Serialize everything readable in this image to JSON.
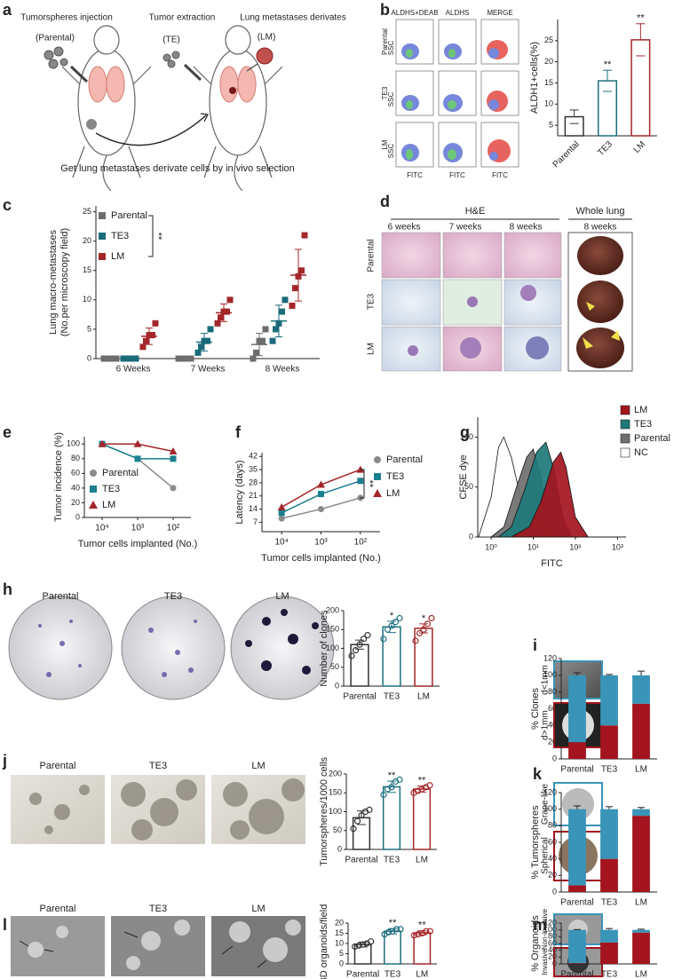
{
  "figure": {
    "panel_labels": [
      "a",
      "b",
      "c",
      "d",
      "e",
      "f",
      "g",
      "h",
      "i",
      "j",
      "k",
      "l",
      "m"
    ],
    "a": {
      "steps": [
        "Tumorspheres injection",
        "Tumor extraction",
        "Lung metastases derivates"
      ],
      "codes": [
        "(Parental)",
        "(TE)",
        "(LM)"
      ],
      "caption": "Get lung metastases derivate cells by in vivo selection"
    },
    "b": {
      "columns": [
        "ALDHS+DEAB",
        "ALDHS",
        "MERGE"
      ],
      "rows": [
        "Parental",
        "TE3",
        "LM"
      ],
      "y_label": "SSC",
      "x_label": "FITC"
    },
    "d": {
      "group_titles": [
        "H&E",
        "Whole lung"
      ],
      "columns": [
        "6 weeks",
        "7 weeks",
        "8 weeks",
        "8 weeks"
      ],
      "rows": [
        "Parental",
        "TE3",
        "LM"
      ]
    },
    "h": {
      "images": [
        "Parental",
        "TE3",
        "LM"
      ]
    },
    "i": {
      "images": [
        "d<1mm",
        "d>1mm"
      ]
    },
    "j": {
      "images": [
        "Parental",
        "TE3",
        "LM"
      ]
    },
    "k": {
      "images": [
        "Grape-like",
        "Spherical"
      ]
    },
    "l": {
      "images": [
        "Parental",
        "TE3",
        "LM"
      ]
    },
    "m": {
      "images": [
        "Non-invasive",
        "Invasive"
      ]
    }
  },
  "chart_data": [
    {
      "type": "bar",
      "y_label": "ALDH1+cells(%)",
      "categories": [
        "Parental",
        "TE3",
        "LM"
      ],
      "values": [
        7,
        15.5,
        25.2
      ],
      "errors": [
        1.6,
        2.5,
        3.8
      ],
      "significance": [
        null,
        "**",
        "**"
      ],
      "colors": [
        "#333333",
        "#1d6f7f",
        "#a3272a"
      ],
      "ylim": [
        2.5,
        30
      ],
      "yticks": [
        5,
        10,
        15,
        20,
        25
      ]
    },
    {
      "type": "dot",
      "y_label": [
        "Lung macro-metastases",
        "(No.per microscopy field)"
      ],
      "categories": [
        "6 Weeks",
        "7 Weeks",
        "8 Weeks"
      ],
      "significance": "**",
      "series": [
        {
          "name": "Parental",
          "color": "#6d6d6d",
          "values": [
            [
              0,
              0,
              0,
              0,
              0
            ],
            [
              0,
              0,
              0,
              0,
              0
            ],
            [
              0,
              1,
              3,
              3,
              5
            ]
          ],
          "means": [
            0,
            0,
            2.4
          ],
          "sd": [
            0,
            0,
            1.9
          ]
        },
        {
          "name": "TE3",
          "color": "#1b6b7b",
          "values": [
            [
              0,
              0,
              0,
              0,
              0
            ],
            [
              1,
              2,
              3,
              3,
              5
            ],
            [
              3,
              5,
              6,
              8,
              10
            ]
          ],
          "means": [
            0,
            2.8,
            6.4
          ],
          "sd": [
            0,
            1.5,
            2.7
          ]
        },
        {
          "name": "LM",
          "color": "#a3272a",
          "values": [
            [
              2,
              3,
              4,
              4,
              6
            ],
            [
              6,
              7,
              8,
              8,
              10
            ],
            [
              9,
              12,
              14,
              15,
              21
            ]
          ],
          "means": [
            3.8,
            7.8,
            14.2
          ],
          "sd": [
            1.4,
            1.5,
            4.4
          ]
        }
      ],
      "ylim": [
        0,
        26
      ],
      "yticks": [
        0,
        5,
        10,
        15,
        20,
        25
      ]
    },
    {
      "type": "line",
      "y_label": "Tumor incidence (%)",
      "x_label": "Tumor cells implanted (No.)",
      "categories": [
        "10⁴",
        "10³",
        "10²"
      ],
      "series": [
        {
          "name": "Parental",
          "color": "#8a8a8a",
          "marker": "circle",
          "values": [
            100,
            80,
            40
          ]
        },
        {
          "name": "TE3",
          "color": "#1b7f8f",
          "marker": "square",
          "values": [
            100,
            80,
            80
          ]
        },
        {
          "name": "LM",
          "color": "#a3272a",
          "marker": "triangle",
          "values": [
            100,
            100,
            90
          ]
        }
      ],
      "ylim": [
        0,
        110
      ],
      "yticks": [
        0,
        20,
        40,
        60,
        80,
        100
      ]
    },
    {
      "type": "line",
      "y_label": "Latency (days)",
      "x_label": "Tumor cells implanted (No.)",
      "categories": [
        "10⁴",
        "10³",
        "10²"
      ],
      "significance": "**",
      "series": [
        {
          "name": "Parental",
          "color": "#8a8a8a",
          "marker": "circle",
          "values": [
            9,
            14,
            20
          ]
        },
        {
          "name": "TE3",
          "color": "#1b7f8f",
          "marker": "square",
          "values": [
            12,
            22,
            29
          ]
        },
        {
          "name": "LM",
          "color": "#a3272a",
          "marker": "triangle",
          "values": [
            15,
            27,
            35
          ]
        }
      ],
      "ylim": [
        2,
        44
      ],
      "yticks": [
        7,
        14,
        21,
        28,
        35,
        42
      ]
    },
    {
      "type": "area",
      "y_label": "CFSE dye",
      "x_label": "FITC",
      "xscale": "log",
      "xlim": [
        0.48,
        1600
      ],
      "xticks": [
        {
          "value": 1,
          "label": "10⁰"
        },
        {
          "value": 10,
          "label": "10¹"
        },
        {
          "value": 100,
          "label": "10²"
        },
        {
          "value": 1000,
          "label": "10³"
        }
      ],
      "series": [
        {
          "name": "LM",
          "color": "#a3141e",
          "x": [
            3,
            8,
            15,
            30,
            45,
            60,
            100,
            200
          ],
          "values": [
            0,
            10,
            35,
            75,
            85,
            70,
            20,
            0
          ]
        },
        {
          "name": "TE3",
          "color": "#1d7a78",
          "x": [
            1.5,
            3,
            6,
            12,
            20,
            30,
            50,
            80
          ],
          "values": [
            0,
            10,
            45,
            85,
            95,
            70,
            20,
            0
          ]
        },
        {
          "name": "Parental",
          "color": "#6f6f6f",
          "x": [
            1,
            2,
            4,
            7,
            10,
            15,
            25,
            40
          ],
          "values": [
            0,
            10,
            50,
            80,
            88,
            60,
            15,
            0
          ]
        },
        {
          "name": "NC",
          "color": "#ffffff",
          "x": [
            0.5,
            1,
            1.5,
            2,
            3,
            5,
            8,
            12,
            20
          ],
          "values": [
            0,
            40,
            90,
            100,
            80,
            40,
            15,
            3,
            0
          ]
        }
      ],
      "ylim": [
        0,
        120
      ],
      "yticks": [
        0,
        50,
        100
      ]
    },
    {
      "type": "bar",
      "y_label": "Number of clones",
      "categories": [
        "Parental",
        "TE3",
        "LM"
      ],
      "values": [
        110,
        157,
        153
      ],
      "errors": [
        12,
        15,
        12
      ],
      "significance": [
        null,
        "*",
        "*"
      ],
      "colors": [
        "#333333",
        "#1d6f7f",
        "#a3272a"
      ],
      "points": [
        [
          80,
          95,
          110,
          125,
          135
        ],
        [
          125,
          150,
          160,
          170,
          180
        ],
        [
          120,
          140,
          150,
          165,
          180
        ]
      ],
      "ylim": [
        0,
        200
      ],
      "yticks": [
        0,
        50,
        100,
        150,
        200
      ]
    },
    {
      "type": "stacked",
      "y_label": "% Clones",
      "categories": [
        "Parental",
        "TE3",
        "LM"
      ],
      "series": [
        {
          "color": "#a3141e",
          "values": [
            20,
            40,
            66
          ],
          "errors": [
            3,
            1,
            5
          ]
        },
        {
          "color": "#3a94b8",
          "values": [
            80,
            60,
            34
          ],
          "errors": [
            3,
            1,
            5
          ]
        }
      ],
      "ylim": [
        0,
        120
      ],
      "yticks": [
        0,
        20,
        40,
        60,
        80,
        100,
        120
      ]
    },
    {
      "type": "bar",
      "y_label": "Tumorspheres/1000 cells",
      "categories": [
        "Parental",
        "TE3",
        "LM"
      ],
      "values": [
        84,
        166,
        160
      ],
      "errors": [
        18,
        15,
        8
      ],
      "significance": [
        null,
        "**",
        "**"
      ],
      "colors": [
        "#333333",
        "#1d6f7f",
        "#a3272a"
      ],
      "points": [
        [
          55,
          75,
          90,
          100,
          105
        ],
        [
          145,
          160,
          165,
          180,
          185
        ],
        [
          150,
          155,
          160,
          165,
          170
        ]
      ],
      "ylim": [
        0,
        200
      ],
      "yticks": [
        0,
        50,
        100,
        150,
        200
      ]
    },
    {
      "type": "stacked",
      "y_label": "% Tumorspheres",
      "categories": [
        "Parental",
        "TE3",
        "LM"
      ],
      "series": [
        {
          "color": "#a3141e",
          "values": [
            8,
            40,
            92
          ],
          "errors": [
            4,
            3,
            2
          ]
        },
        {
          "color": "#3a94b8",
          "values": [
            92,
            60,
            8
          ],
          "errors": [
            4,
            3,
            2
          ]
        }
      ],
      "ylim": [
        0,
        120
      ],
      "yticks": [
        0,
        20,
        40,
        60,
        80,
        100,
        120
      ]
    },
    {
      "type": "bar",
      "y_label": "3D organoids/field",
      "categories": [
        "Parental",
        "TE3",
        "LM"
      ],
      "values": [
        9.5,
        16,
        15.2
      ],
      "errors": [
        1.2,
        1.3,
        1
      ],
      "significance": [
        null,
        "**",
        "**"
      ],
      "colors": [
        "#333333",
        "#1d6f7f",
        "#a3272a"
      ],
      "points": [
        [
          8.5,
          9,
          9.5,
          10,
          11
        ],
        [
          14.5,
          15.5,
          16,
          17,
          17
        ],
        [
          14,
          14.5,
          15,
          16,
          16
        ]
      ],
      "ylim": [
        0,
        20
      ],
      "yticks": [
        0,
        5,
        10,
        15,
        20
      ]
    },
    {
      "type": "stacked",
      "y_label": "% Organoids",
      "categories": [
        "Parental",
        "TE3",
        "LM"
      ],
      "series": [
        {
          "color": "#a3141e",
          "values": [
            2,
            63,
            92
          ],
          "errors": [
            1,
            4,
            2
          ]
        },
        {
          "color": "#3a94b8",
          "values": [
            98,
            37,
            8
          ],
          "errors": [
            1,
            4,
            2
          ]
        }
      ],
      "ylim": [
        0,
        120
      ],
      "yticks": [
        0,
        20,
        40,
        60,
        80,
        100,
        120
      ]
    }
  ]
}
